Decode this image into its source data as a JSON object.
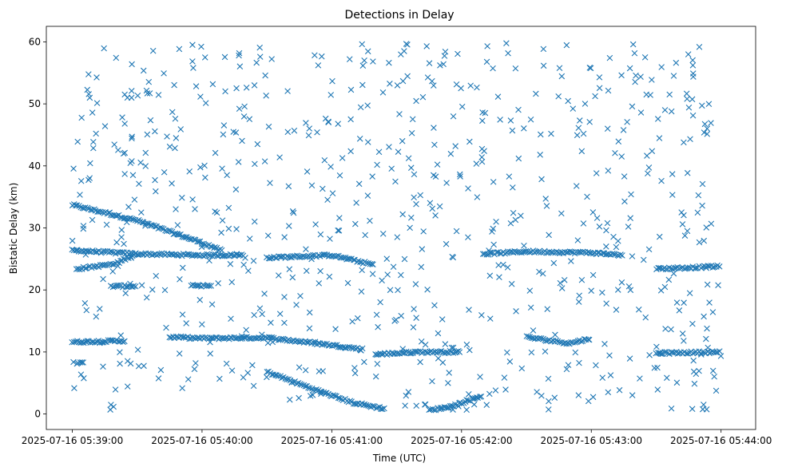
{
  "chart_data": {
    "type": "scatter",
    "title": "Detections in Delay",
    "xlabel": "Time (UTC)",
    "ylabel": "Bistatic Delay (km)",
    "marker": "x",
    "color": "#1f77b4",
    "xlim": [
      "2025-07-16 05:38:48",
      "2025-07-16 05:44:16"
    ],
    "ylim": [
      -2.5,
      62.5
    ],
    "x_ticks": [
      "2025-07-16 05:39:00",
      "2025-07-16 05:40:00",
      "2025-07-16 05:41:00",
      "2025-07-16 05:42:00",
      "2025-07-16 05:43:00",
      "2025-07-16 05:44:00"
    ],
    "y_ticks": [
      0,
      10,
      20,
      30,
      40,
      50,
      60
    ],
    "grid": false,
    "legend": "none",
    "tracks": [
      {
        "points": [
          [
            "2025-07-16 05:39:00",
            33.7
          ],
          [
            "2025-07-16 05:39:30",
            31.2
          ],
          [
            "2025-07-16 05:40:00",
            27.6
          ],
          [
            "2025-07-16 05:40:10",
            26.2
          ]
        ]
      },
      {
        "points": [
          [
            "2025-07-16 05:39:00",
            26.4
          ],
          [
            "2025-07-16 05:39:30",
            25.8
          ],
          [
            "2025-07-16 05:40:00",
            25.6
          ],
          [
            "2025-07-16 05:40:20",
            25.6
          ]
        ]
      },
      {
        "points": [
          [
            "2025-07-16 05:39:02",
            23.4
          ],
          [
            "2025-07-16 05:39:20",
            24.2
          ],
          [
            "2025-07-16 05:39:30",
            26.0
          ]
        ]
      },
      {
        "points": [
          [
            "2025-07-16 05:39:00",
            11.6
          ],
          [
            "2025-07-16 05:39:25",
            11.8
          ]
        ]
      },
      {
        "points": [
          [
            "2025-07-16 05:39:02",
            8.2
          ],
          [
            "2025-07-16 05:39:06",
            8.2
          ]
        ]
      },
      {
        "points": [
          [
            "2025-07-16 05:39:18",
            20.6
          ],
          [
            "2025-07-16 05:39:30",
            20.6
          ]
        ]
      },
      {
        "points": [
          [
            "2025-07-16 05:39:45",
            12.4
          ],
          [
            "2025-07-16 05:40:00",
            12.2
          ],
          [
            "2025-07-16 05:40:30",
            12.3
          ],
          [
            "2025-07-16 05:41:00",
            11.1
          ],
          [
            "2025-07-16 05:41:15",
            10.4
          ]
        ]
      },
      {
        "points": [
          [
            "2025-07-16 05:39:55",
            20.8
          ],
          [
            "2025-07-16 05:40:05",
            20.6
          ]
        ]
      },
      {
        "points": [
          [
            "2025-07-16 05:40:30",
            25.2
          ],
          [
            "2025-07-16 05:41:00",
            25.6
          ],
          [
            "2025-07-16 05:41:20",
            24.0
          ]
        ]
      },
      {
        "points": [
          [
            "2025-07-16 05:40:30",
            6.8
          ],
          [
            "2025-07-16 05:40:50",
            4.2
          ],
          [
            "2025-07-16 05:41:10",
            1.8
          ],
          [
            "2025-07-16 05:41:25",
            0.8
          ]
        ]
      },
      {
        "points": [
          [
            "2025-07-16 05:41:20",
            9.6
          ],
          [
            "2025-07-16 05:41:40",
            10.0
          ],
          [
            "2025-07-16 05:42:00",
            10.0
          ]
        ]
      },
      {
        "points": [
          [
            "2025-07-16 05:41:45",
            0.6
          ],
          [
            "2025-07-16 05:41:55",
            1.2
          ],
          [
            "2025-07-16 05:42:10",
            3.0
          ]
        ]
      },
      {
        "points": [
          [
            "2025-07-16 05:42:10",
            25.8
          ],
          [
            "2025-07-16 05:42:30",
            26.2
          ],
          [
            "2025-07-16 05:43:00",
            26.0
          ],
          [
            "2025-07-16 05:43:15",
            25.6
          ]
        ]
      },
      {
        "points": [
          [
            "2025-07-16 05:42:30",
            12.4
          ],
          [
            "2025-07-16 05:42:50",
            11.4
          ],
          [
            "2025-07-16 05:43:00",
            12.2
          ]
        ]
      },
      {
        "points": [
          [
            "2025-07-16 05:43:30",
            23.4
          ],
          [
            "2025-07-16 05:44:00",
            23.8
          ]
        ]
      },
      {
        "points": [
          [
            "2025-07-16 05:43:30",
            9.8
          ],
          [
            "2025-07-16 05:44:00",
            10.0
          ]
        ]
      }
    ],
    "scatter_count": 720,
    "scatter_x_range": [
      "2025-07-16 05:39:00",
      "2025-07-16 05:44:00"
    ],
    "scatter_y_range": [
      0.5,
      59.8
    ]
  }
}
